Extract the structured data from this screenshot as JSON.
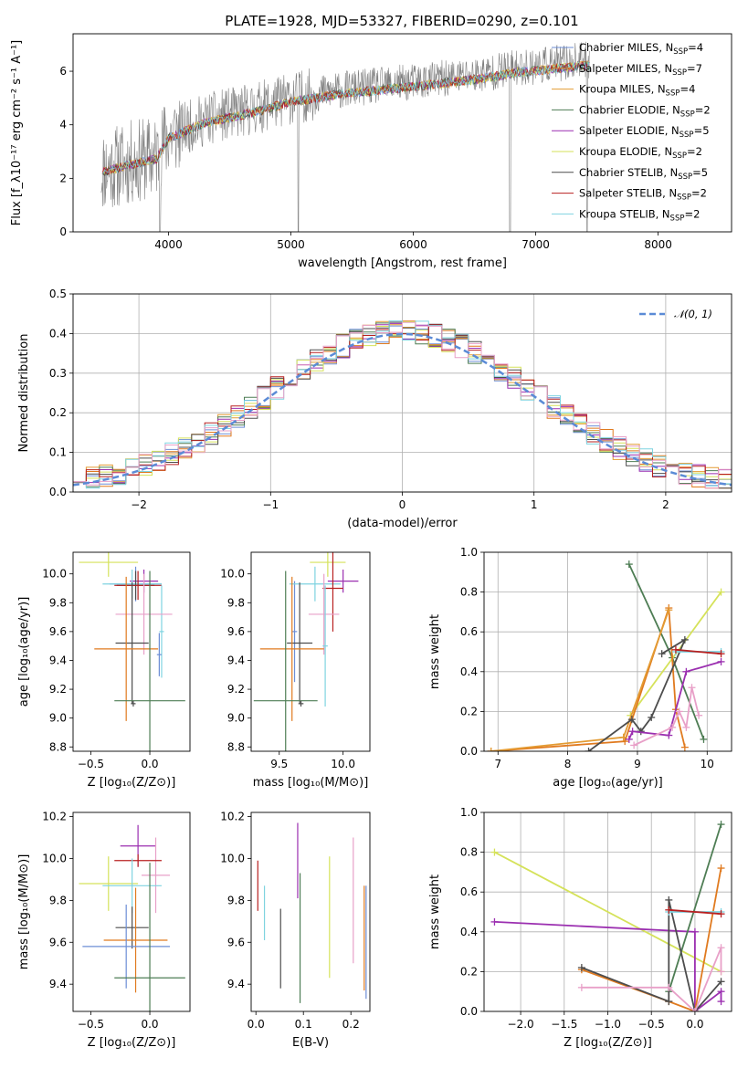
{
  "title": "PLATE=1928, MJD=53327, FIBERID=0290, z=0.101",
  "colors": {
    "c1": "#6c8ed6",
    "c2": "#e07a1f",
    "c3": "#e39b33",
    "c4": "#4e7d54",
    "c5": "#9b2fb0",
    "c6": "#d5e25a",
    "c7": "#4d4d4d",
    "c8": "#b82020",
    "c9": "#7fd3e0",
    "gray": "#808080",
    "pink": "#e8a0c8",
    "blue": "#5b8bd6",
    "grid": "#b0b0b0"
  },
  "chart_data": [
    {
      "id": "spectrum",
      "type": "line",
      "xlabel": "wavelength [Angstrom, rest frame]",
      "ylabel": "Flux [f_λ10⁻¹⁷ erg cm⁻² s⁻¹ A⁻¹]",
      "xlim": [
        3220,
        8600
      ],
      "ylim": [
        0,
        7.4
      ],
      "xticks": [
        4000,
        5000,
        6000,
        7000,
        8000
      ],
      "yticks": [
        0,
        2,
        4,
        6
      ],
      "grid": false,
      "legend_position": "right",
      "legend": [
        {
          "name": "Chabrier MILES, N_SSP=4",
          "base": "Chabrier MILES, N",
          "sub": "SSP",
          "tail": "=4",
          "color": "c1"
        },
        {
          "name": "Salpeter MILES, N_SSP=7",
          "base": "Salpeter MILES, N",
          "sub": "SSP",
          "tail": "=7",
          "color": "c2"
        },
        {
          "name": "Kroupa MILES, N_SSP=4",
          "base": "Kroupa MILES, N",
          "sub": "SSP",
          "tail": "=4",
          "color": "c3"
        },
        {
          "name": "Chabrier ELODIE, N_SSP=2",
          "base": "Chabrier ELODIE, N",
          "sub": "SSP",
          "tail": "=2",
          "color": "c4"
        },
        {
          "name": "Salpeter ELODIE, N_SSP=5",
          "base": "Salpeter ELODIE, N",
          "sub": "SSP",
          "tail": "=5",
          "color": "c5"
        },
        {
          "name": "Kroupa ELODIE, N_SSP=2",
          "base": "Kroupa ELODIE, N",
          "sub": "SSP",
          "tail": "=2",
          "color": "c6"
        },
        {
          "name": "Chabrier STELIB, N_SSP=5",
          "base": "Chabrier STELIB, N",
          "sub": "SSP",
          "tail": "=5",
          "color": "c7"
        },
        {
          "name": "Salpeter STELIB, N_SSP=2",
          "base": "Salpeter STELIB, N",
          "sub": "SSP",
          "tail": "=2",
          "color": "c8"
        },
        {
          "name": "Kroupa STELIB, N_SSP=2",
          "base": "Kroupa STELIB, N",
          "sub": "SSP",
          "tail": "=2",
          "color": "c9"
        }
      ],
      "continuum": [
        [
          3450,
          2.3
        ],
        [
          3700,
          2.6
        ],
        [
          3900,
          2.8
        ],
        [
          4000,
          3.6
        ],
        [
          4300,
          4.2
        ],
        [
          4700,
          4.6
        ],
        [
          5000,
          5.0
        ],
        [
          5400,
          5.3
        ],
        [
          5800,
          5.5
        ],
        [
          6200,
          5.7
        ],
        [
          6560,
          5.9
        ],
        [
          6800,
          6.1
        ],
        [
          7000,
          6.2
        ],
        [
          7400,
          6.4
        ],
        [
          7800,
          6.4
        ],
        [
          8200,
          6.5
        ],
        [
          8600,
          6.6
        ]
      ],
      "dips": [
        [
          3930,
          0.0
        ],
        [
          5060,
          0.0
        ],
        [
          6790,
          0.0
        ],
        [
          7420,
          0.0
        ]
      ]
    },
    {
      "id": "residuals",
      "type": "histogram",
      "xlabel": "(data-model)/error",
      "ylabel": "Normed distribution",
      "xlim": [
        -2.5,
        2.5
      ],
      "ylim": [
        0,
        0.5
      ],
      "xticks": [
        -2,
        -1,
        0,
        1,
        2
      ],
      "xtick_labels": [
        "−2",
        "−1",
        "0",
        "1",
        "2"
      ],
      "yticks": [
        0,
        0.1,
        0.2,
        0.3,
        0.4,
        0.5
      ],
      "ytick_labels": [
        "0.0",
        "0.1",
        "0.2",
        "0.3",
        "0.4",
        "0.5"
      ],
      "grid": true,
      "legend_position": "top-right",
      "gaussian_label": "𝒩(0, 1)",
      "bin_width": 0.1
    },
    {
      "id": "age_vs_z",
      "type": "scatter",
      "xlabel": "Z [log₁₀(Z/Z⊙)]",
      "ylabel": "age  [log₁₀(age/yr)]",
      "xlim": [
        -0.65,
        0.34
      ],
      "ylim": [
        8.77,
        10.15
      ],
      "xticks": [
        -0.5,
        0.0
      ],
      "xtick_labels": [
        "−0.5",
        "0.0"
      ],
      "yticks": [
        8.8,
        9.0,
        9.2,
        9.4,
        9.6,
        9.8,
        10.0
      ],
      "ytick_labels": [
        "8.8",
        "9.0",
        "9.2",
        "9.4",
        "9.6",
        "9.8",
        "10.0"
      ],
      "points": [
        {
          "c": "c6",
          "x": -0.35,
          "xe": 0.25,
          "y": 10.08,
          "ye": 0.1
        },
        {
          "c": "c5",
          "x": -0.05,
          "xe": 0.12,
          "y": 9.95,
          "ye": 0.08
        },
        {
          "c": "c1",
          "x": -0.12,
          "xe": 0.22,
          "y": 9.93,
          "ye": 0.12
        },
        {
          "c": "c9",
          "x": -0.15,
          "xe": 0.25,
          "y": 9.93,
          "ye": 0.1
        },
        {
          "c": "c7",
          "x": -0.12,
          "xe": 0.16,
          "y": 9.92,
          "ye": 0.1
        },
        {
          "c": "c8",
          "x": -0.1,
          "xe": 0.2,
          "y": 9.92,
          "ye": 0.1
        },
        {
          "c": "c9",
          "x": 0.1,
          "xe": 0.02,
          "y": 9.6,
          "ye": 0.32
        },
        {
          "c": "pink",
          "x": -0.05,
          "xe": 0.24,
          "y": 9.72,
          "ye": 0.28
        },
        {
          "c": "c7",
          "x": -0.15,
          "xe": 0.14,
          "y": 9.52,
          "ye": 0.42
        },
        {
          "c": "c2",
          "x": -0.2,
          "xe": 0.27,
          "y": 9.48,
          "ye": 0.5
        },
        {
          "c": "c1",
          "x": 0.08,
          "xe": 0.02,
          "y": 9.44,
          "ye": 0.15
        },
        {
          "c": "c4",
          "x": 0.0,
          "xe": 0.3,
          "y": 9.12,
          "ye": 0.9
        },
        {
          "c": "c7",
          "x": -0.14,
          "xe": 0.02,
          "y": 9.1,
          "ye": 0.02
        }
      ]
    },
    {
      "id": "age_vs_mass",
      "type": "scatter",
      "xlabel": "mass [log₁₀(M/M⊙)]",
      "ylabel": "",
      "xlim": [
        9.28,
        10.21
      ],
      "ylim": [
        8.77,
        10.15
      ],
      "xticks": [
        9.5,
        10.0
      ],
      "xtick_labels": [
        "9.5",
        "10.0"
      ],
      "yticks": [
        8.8,
        9.0,
        9.2,
        9.4,
        9.6,
        9.8,
        10.0
      ],
      "ytick_labels": [
        "8.8",
        "9.0",
        "9.2",
        "9.4",
        "9.6",
        "9.8",
        "10.0"
      ],
      "points": [
        {
          "c": "c6",
          "x": 9.88,
          "xe": 0.14,
          "y": 10.08,
          "ye": 0.1
        },
        {
          "c": "c5",
          "x": 10.0,
          "xe": 0.12,
          "y": 9.95,
          "ye": 0.08
        },
        {
          "c": "c1",
          "x": 9.62,
          "xe": 0.02,
          "y": 9.6,
          "ye": 0.35
        },
        {
          "c": "c9",
          "x": 9.78,
          "xe": 0.2,
          "y": 9.93,
          "ye": 0.12
        },
        {
          "c": "c8",
          "x": 9.92,
          "xe": 0.08,
          "y": 9.9,
          "ye": 0.3
        },
        {
          "c": "pink",
          "x": 9.85,
          "xe": 0.12,
          "y": 9.72,
          "ye": 0.28
        },
        {
          "c": "c9",
          "x": 9.86,
          "xe": 0.02,
          "y": 9.5,
          "ye": 0.42
        },
        {
          "c": "c7",
          "x": 9.66,
          "xe": 0.1,
          "y": 9.52,
          "ye": 0.42
        },
        {
          "c": "c2",
          "x": 9.6,
          "xe": 0.25,
          "y": 9.48,
          "ye": 0.5
        },
        {
          "c": "c4",
          "x": 9.55,
          "xe": 0.25,
          "y": 9.12,
          "ye": 0.9
        },
        {
          "c": "c7",
          "x": 9.67,
          "xe": 0.02,
          "y": 9.1,
          "ye": 0.02
        }
      ]
    },
    {
      "id": "weight_vs_age",
      "type": "line",
      "xlabel": "age  [log₁₀(age/yr)]",
      "ylabel": "mass weight",
      "xlim": [
        6.8,
        10.35
      ],
      "ylim": [
        0,
        1.0
      ],
      "xticks": [
        7,
        8,
        9,
        10
      ],
      "xtick_labels": [
        "7",
        "8",
        "9",
        "10"
      ],
      "yticks": [
        0,
        0.2,
        0.4,
        0.6,
        0.8,
        1.0
      ],
      "ytick_labels": [
        "0.0",
        "0.2",
        "0.4",
        "0.6",
        "0.8",
        "1.0"
      ],
      "grid": true,
      "series": [
        {
          "c": "c4",
          "pts": [
            [
              8.88,
              0.94
            ],
            [
              9.5,
              0.47
            ],
            [
              9.95,
              0.06
            ]
          ]
        },
        {
          "c": "c6",
          "pts": [
            [
              8.9,
              0.18
            ],
            [
              10.2,
              0.8
            ]
          ]
        },
        {
          "c": "c2",
          "pts": [
            [
              6.9,
              0.0
            ],
            [
              8.82,
              0.05
            ],
            [
              9.45,
              0.72
            ],
            [
              9.55,
              0.21
            ],
            [
              9.68,
              0.02
            ]
          ]
        },
        {
          "c": "c3",
          "pts": [
            [
              6.9,
              0.0
            ],
            [
              8.8,
              0.07
            ],
            [
              9.45,
              0.71
            ]
          ]
        },
        {
          "c": "c7",
          "pts": [
            [
              8.3,
              0.0
            ],
            [
              8.92,
              0.16
            ],
            [
              9.05,
              0.1
            ],
            [
              9.2,
              0.17
            ],
            [
              9.68,
              0.56
            ],
            [
              9.35,
              0.49
            ]
          ]
        },
        {
          "c": "c9",
          "pts": [
            [
              9.55,
              0.5
            ],
            [
              10.2,
              0.5
            ]
          ]
        },
        {
          "c": "c8",
          "pts": [
            [
              9.55,
              0.51
            ],
            [
              10.2,
              0.49
            ]
          ]
        },
        {
          "c": "c5",
          "pts": [
            [
              8.88,
              0.06
            ],
            [
              8.93,
              0.1
            ],
            [
              9.45,
              0.08
            ],
            [
              9.7,
              0.4
            ],
            [
              10.2,
              0.45
            ]
          ]
        },
        {
          "c": "pink",
          "pts": [
            [
              8.95,
              0.03
            ],
            [
              9.5,
              0.12
            ],
            [
              9.6,
              0.2
            ],
            [
              9.7,
              0.12
            ],
            [
              9.78,
              0.32
            ],
            [
              9.88,
              0.18
            ]
          ]
        }
      ]
    },
    {
      "id": "mass_vs_z",
      "type": "scatter",
      "xlabel": "Z [log₁₀(Z/Z⊙)]",
      "ylabel": "mass [log₁₀(M/M⊙)]",
      "xlim": [
        -0.65,
        0.34
      ],
      "ylim": [
        9.27,
        10.22
      ],
      "xticks": [
        -0.5,
        0.0
      ],
      "xtick_labels": [
        "−0.5",
        "0.0"
      ],
      "yticks": [
        9.4,
        9.6,
        9.8,
        10.0,
        10.2
      ],
      "ytick_labels": [
        "9.4",
        "9.6",
        "9.8",
        "10.0",
        "10.2"
      ],
      "points": [
        {
          "c": "c5",
          "x": -0.1,
          "xe": 0.15,
          "y": 10.06,
          "ye": 0.1
        },
        {
          "c": "pink",
          "x": 0.05,
          "xe": 0.12,
          "y": 9.92,
          "ye": 0.18
        },
        {
          "c": "c8",
          "x": -0.1,
          "xe": 0.2,
          "y": 9.99,
          "ye": 0.03
        },
        {
          "c": "c6",
          "x": -0.35,
          "xe": 0.25,
          "y": 9.88,
          "ye": 0.13
        },
        {
          "c": "c9",
          "x": -0.15,
          "xe": 0.25,
          "y": 9.87,
          "ye": 0.13
        },
        {
          "c": "c7",
          "x": -0.15,
          "xe": 0.14,
          "y": 9.67,
          "ye": 0.1
        },
        {
          "c": "c2",
          "x": -0.12,
          "xe": 0.27,
          "y": 9.61,
          "ye": 0.25
        },
        {
          "c": "c1",
          "x": -0.2,
          "xe": 0.37,
          "y": 9.58,
          "ye": 0.2
        },
        {
          "c": "c4",
          "x": 0.0,
          "xe": 0.3,
          "y": 9.43,
          "ye": 0.55
        }
      ]
    },
    {
      "id": "mass_vs_ebv",
      "type": "scatter",
      "xlabel": "E(B-V)",
      "ylabel": "",
      "xlim": [
        -0.01,
        0.24
      ],
      "ylim": [
        9.27,
        10.22
      ],
      "xticks": [
        0.0,
        0.1,
        0.2
      ],
      "xtick_labels": [
        "0.0",
        "0.1",
        "0.2"
      ],
      "yticks": [
        9.4,
        9.6,
        9.8,
        10.0,
        10.2
      ],
      "ytick_labels": [
        "9.4",
        "9.6",
        "9.8",
        "10.0",
        "10.2"
      ],
      "points": [
        {
          "c": "c8",
          "x": 0.004,
          "xe": 0,
          "y": 9.87,
          "ye": 0.12
        },
        {
          "c": "c9",
          "x": 0.018,
          "xe": 0,
          "y": 9.74,
          "ye": 0.13
        },
        {
          "c": "c7",
          "x": 0.052,
          "xe": 0,
          "y": 9.57,
          "ye": 0.19
        },
        {
          "c": "c4",
          "x": 0.093,
          "xe": 0,
          "y": 9.62,
          "ye": 0.31
        },
        {
          "c": "c5",
          "x": 0.088,
          "xe": 0,
          "y": 9.99,
          "ye": 0.18
        },
        {
          "c": "c6",
          "x": 0.155,
          "xe": 0,
          "y": 9.72,
          "ye": 0.29
        },
        {
          "c": "pink",
          "x": 0.205,
          "xe": 0,
          "y": 9.8,
          "ye": 0.3
        },
        {
          "c": "c2",
          "x": 0.228,
          "xe": 0,
          "y": 9.62,
          "ye": 0.25
        },
        {
          "c": "c1",
          "x": 0.232,
          "xe": 0,
          "y": 9.6,
          "ye": 0.27
        }
      ]
    },
    {
      "id": "weight_vs_z",
      "type": "line",
      "xlabel": "Z [log₁₀(Z/Z⊙)]",
      "ylabel": "mass weight",
      "xlim": [
        -2.42,
        0.42
      ],
      "ylim": [
        0,
        1.0
      ],
      "xticks": [
        -2.0,
        -1.5,
        -1.0,
        -0.5,
        0.0
      ],
      "xtick_labels": [
        "−2.0",
        "−1.5",
        "−1.0",
        "−0.5",
        "0.0"
      ],
      "yticks": [
        0,
        0.2,
        0.4,
        0.6,
        0.8,
        1.0
      ],
      "ytick_labels": [
        "0.0",
        "0.2",
        "0.4",
        "0.6",
        "0.8",
        "1.0"
      ],
      "grid": true,
      "series": [
        {
          "c": "c6",
          "pts": [
            [
              -2.3,
              0.8
            ],
            [
              0.3,
              0.2
            ]
          ]
        },
        {
          "c": "c5",
          "pts": [
            [
              -2.3,
              0.45
            ],
            [
              0.0,
              0.4
            ],
            [
              0.0,
              0.0
            ],
            [
              0.3,
              0.1
            ],
            [
              0.3,
              0.05
            ]
          ]
        },
        {
          "c": "c4",
          "pts": [
            [
              -0.3,
              0.1
            ],
            [
              0.3,
              0.94
            ]
          ]
        },
        {
          "c": "c2",
          "pts": [
            [
              -1.3,
              0.21
            ],
            [
              -0.3,
              0.05
            ],
            [
              0.0,
              0.0
            ],
            [
              0.3,
              0.72
            ]
          ]
        },
        {
          "c": "c7",
          "pts": [
            [
              -1.3,
              0.22
            ],
            [
              -0.3,
              0.05
            ],
            [
              -0.3,
              0.56
            ],
            [
              0.0,
              0.0
            ],
            [
              0.3,
              0.15
            ]
          ]
        },
        {
          "c": "c9",
          "pts": [
            [
              -0.3,
              0.5
            ],
            [
              0.3,
              0.5
            ]
          ]
        },
        {
          "c": "c8",
          "pts": [
            [
              -0.3,
              0.51
            ],
            [
              0.3,
              0.49
            ]
          ]
        },
        {
          "c": "pink",
          "pts": [
            [
              -1.3,
              0.12
            ],
            [
              -0.3,
              0.12
            ],
            [
              0.0,
              0.0
            ],
            [
              0.3,
              0.32
            ],
            [
              0.3,
              0.2
            ]
          ]
        }
      ]
    }
  ]
}
